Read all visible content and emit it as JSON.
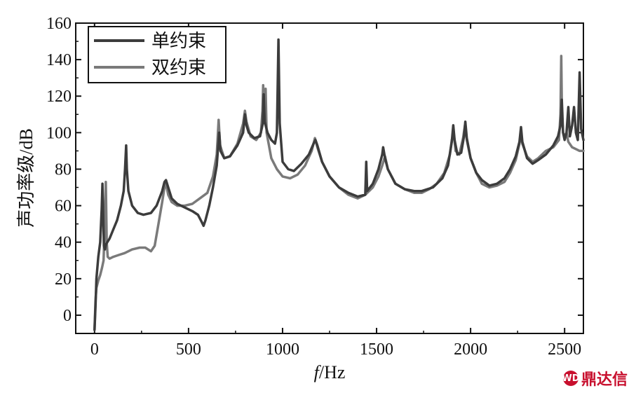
{
  "chart_data": {
    "type": "line",
    "xlabel_italic": "f",
    "xlabel_rest": "/Hz",
    "ylabel": "声功率级/dB",
    "xlim": [
      -100,
      2600
    ],
    "ylim": [
      -10,
      160
    ],
    "xticks": [
      0,
      500,
      1000,
      1500,
      2000,
      2500
    ],
    "yticks": [
      0,
      20,
      40,
      60,
      80,
      100,
      120,
      140,
      160
    ],
    "legend_position": "top-left",
    "grid": false,
    "series": [
      {
        "name": "单约束",
        "color": "#3c3c3c",
        "points": [
          [
            0,
            -8
          ],
          [
            5,
            5
          ],
          [
            10,
            20
          ],
          [
            20,
            32
          ],
          [
            30,
            40
          ],
          [
            38,
            58
          ],
          [
            42,
            72
          ],
          [
            46,
            55
          ],
          [
            50,
            38
          ],
          [
            55,
            36
          ],
          [
            62,
            39
          ],
          [
            80,
            42
          ],
          [
            100,
            47
          ],
          [
            120,
            52
          ],
          [
            140,
            60
          ],
          [
            155,
            68
          ],
          [
            162,
            80
          ],
          [
            168,
            93
          ],
          [
            172,
            80
          ],
          [
            180,
            68
          ],
          [
            200,
            60
          ],
          [
            230,
            56
          ],
          [
            260,
            55
          ],
          [
            300,
            56
          ],
          [
            330,
            60
          ],
          [
            360,
            68
          ],
          [
            372,
            73
          ],
          [
            380,
            74
          ],
          [
            392,
            70
          ],
          [
            410,
            64
          ],
          [
            440,
            61
          ],
          [
            480,
            59
          ],
          [
            520,
            57
          ],
          [
            550,
            55
          ],
          [
            570,
            51
          ],
          [
            580,
            49
          ],
          [
            590,
            52
          ],
          [
            610,
            60
          ],
          [
            630,
            70
          ],
          [
            650,
            82
          ],
          [
            663,
            100
          ],
          [
            670,
            90
          ],
          [
            690,
            86
          ],
          [
            720,
            87
          ],
          [
            760,
            93
          ],
          [
            790,
            100
          ],
          [
            800,
            110
          ],
          [
            808,
            104
          ],
          [
            820,
            100
          ],
          [
            850,
            97
          ],
          [
            880,
            98
          ],
          [
            895,
            105
          ],
          [
            900,
            121
          ],
          [
            905,
            106
          ],
          [
            920,
            100
          ],
          [
            940,
            96
          ],
          [
            960,
            94
          ],
          [
            970,
            100
          ],
          [
            978,
            151
          ],
          [
            985,
            105
          ],
          [
            1000,
            84
          ],
          [
            1030,
            80
          ],
          [
            1060,
            79
          ],
          [
            1100,
            83
          ],
          [
            1140,
            88
          ],
          [
            1165,
            94
          ],
          [
            1175,
            96
          ],
          [
            1185,
            93
          ],
          [
            1210,
            84
          ],
          [
            1250,
            76
          ],
          [
            1300,
            70
          ],
          [
            1350,
            67
          ],
          [
            1400,
            65
          ],
          [
            1440,
            66
          ],
          [
            1445,
            84
          ],
          [
            1450,
            68
          ],
          [
            1480,
            72
          ],
          [
            1510,
            80
          ],
          [
            1530,
            88
          ],
          [
            1535,
            92
          ],
          [
            1545,
            86
          ],
          [
            1560,
            80
          ],
          [
            1600,
            72
          ],
          [
            1650,
            69
          ],
          [
            1700,
            68
          ],
          [
            1740,
            68
          ],
          [
            1800,
            70
          ],
          [
            1850,
            75
          ],
          [
            1880,
            82
          ],
          [
            1900,
            95
          ],
          [
            1908,
            104
          ],
          [
            1915,
            96
          ],
          [
            1930,
            88
          ],
          [
            1950,
            89
          ],
          [
            1965,
            98
          ],
          [
            1972,
            106
          ],
          [
            1980,
            97
          ],
          [
            2000,
            86
          ],
          [
            2030,
            78
          ],
          [
            2060,
            74
          ],
          [
            2100,
            71
          ],
          [
            2140,
            72
          ],
          [
            2180,
            75
          ],
          [
            2210,
            80
          ],
          [
            2240,
            87
          ],
          [
            2260,
            95
          ],
          [
            2268,
            103
          ],
          [
            2275,
            95
          ],
          [
            2300,
            86
          ],
          [
            2330,
            83
          ],
          [
            2360,
            85
          ],
          [
            2400,
            88
          ],
          [
            2440,
            93
          ],
          [
            2465,
            98
          ],
          [
            2478,
            104
          ],
          [
            2485,
            118
          ],
          [
            2492,
            100
          ],
          [
            2500,
            96
          ],
          [
            2510,
            100
          ],
          [
            2520,
            114
          ],
          [
            2528,
            98
          ],
          [
            2540,
            104
          ],
          [
            2550,
            114
          ],
          [
            2560,
            100
          ],
          [
            2570,
            96
          ],
          [
            2580,
            133
          ],
          [
            2588,
            102
          ],
          [
            2600,
            96
          ]
        ]
      },
      {
        "name": "双约束",
        "color": "#7a7a7a",
        "points": [
          [
            0,
            -8
          ],
          [
            5,
            8
          ],
          [
            10,
            15
          ],
          [
            20,
            19
          ],
          [
            30,
            22
          ],
          [
            40,
            26
          ],
          [
            48,
            30
          ],
          [
            55,
            52
          ],
          [
            60,
            73
          ],
          [
            65,
            40
          ],
          [
            70,
            32
          ],
          [
            80,
            31
          ],
          [
            100,
            32
          ],
          [
            130,
            33
          ],
          [
            160,
            34
          ],
          [
            200,
            36
          ],
          [
            240,
            37
          ],
          [
            270,
            37
          ],
          [
            300,
            35
          ],
          [
            320,
            38
          ],
          [
            340,
            50
          ],
          [
            360,
            62
          ],
          [
            372,
            70
          ],
          [
            380,
            72
          ],
          [
            392,
            66
          ],
          [
            410,
            62
          ],
          [
            440,
            60
          ],
          [
            480,
            60
          ],
          [
            520,
            61
          ],
          [
            560,
            64
          ],
          [
            600,
            67
          ],
          [
            630,
            76
          ],
          [
            650,
            88
          ],
          [
            660,
            107
          ],
          [
            668,
            93
          ],
          [
            690,
            86
          ],
          [
            720,
            87
          ],
          [
            760,
            94
          ],
          [
            790,
            105
          ],
          [
            800,
            112
          ],
          [
            808,
            106
          ],
          [
            830,
            98
          ],
          [
            860,
            96
          ],
          [
            885,
            100
          ],
          [
            893,
            112
          ],
          [
            897,
            126
          ],
          [
            902,
            110
          ],
          [
            910,
            124
          ],
          [
            915,
            100
          ],
          [
            940,
            86
          ],
          [
            970,
            80
          ],
          [
            1000,
            76
          ],
          [
            1040,
            75
          ],
          [
            1080,
            77
          ],
          [
            1120,
            82
          ],
          [
            1155,
            90
          ],
          [
            1172,
            97
          ],
          [
            1185,
            92
          ],
          [
            1210,
            84
          ],
          [
            1250,
            76
          ],
          [
            1300,
            70
          ],
          [
            1350,
            66
          ],
          [
            1400,
            64
          ],
          [
            1440,
            66
          ],
          [
            1480,
            70
          ],
          [
            1510,
            76
          ],
          [
            1530,
            82
          ],
          [
            1545,
            87
          ],
          [
            1560,
            80
          ],
          [
            1600,
            72
          ],
          [
            1650,
            69
          ],
          [
            1700,
            67
          ],
          [
            1740,
            67
          ],
          [
            1780,
            69
          ],
          [
            1820,
            72
          ],
          [
            1860,
            78
          ],
          [
            1890,
            88
          ],
          [
            1900,
            96
          ],
          [
            1910,
            100
          ],
          [
            1920,
            90
          ],
          [
            1940,
            88
          ],
          [
            1960,
            97
          ],
          [
            1970,
            104
          ],
          [
            1980,
            96
          ],
          [
            2000,
            86
          ],
          [
            2030,
            78
          ],
          [
            2060,
            72
          ],
          [
            2100,
            70
          ],
          [
            2140,
            71
          ],
          [
            2180,
            73
          ],
          [
            2210,
            78
          ],
          [
            2240,
            85
          ],
          [
            2260,
            94
          ],
          [
            2268,
            100
          ],
          [
            2275,
            94
          ],
          [
            2300,
            87
          ],
          [
            2330,
            84
          ],
          [
            2360,
            86
          ],
          [
            2400,
            90
          ],
          [
            2440,
            92
          ],
          [
            2470,
            96
          ],
          [
            2478,
            110
          ],
          [
            2482,
            142
          ],
          [
            2486,
            110
          ],
          [
            2492,
            100
          ],
          [
            2500,
            98
          ],
          [
            2510,
            100
          ],
          [
            2520,
            95
          ],
          [
            2540,
            92
          ],
          [
            2560,
            91
          ],
          [
            2580,
            90
          ],
          [
            2600,
            90
          ]
        ]
      }
    ]
  },
  "watermark": {
    "badge": "WD",
    "text": "鼎达信"
  }
}
